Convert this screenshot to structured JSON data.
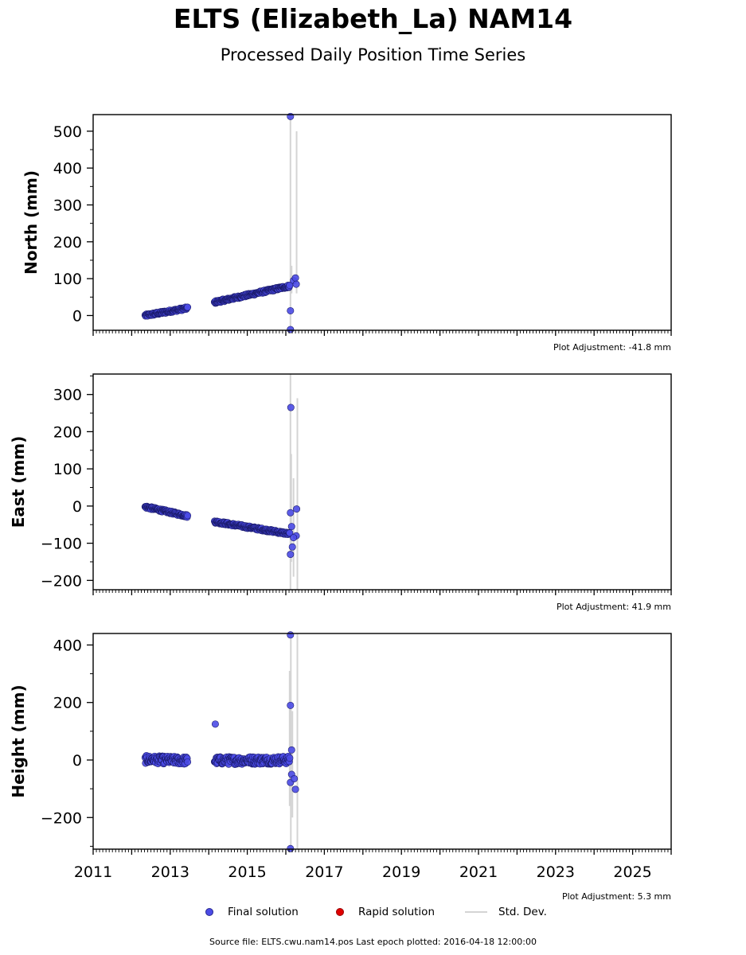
{
  "title": "ELTS (Elizabeth_La) NAM14",
  "subtitle": "Processed Daily Position Time Series",
  "colors": {
    "final": "#4b4be6",
    "rapid": "#e00000",
    "stddev": "#d4d4d4",
    "edge": "#1a1a6a"
  },
  "legend": {
    "final": "Final solution",
    "rapid": "Rapid solution",
    "stddev": "Std. Dev."
  },
  "footer": "Source file: ELTS.cwu.nam14.pos  Last epoch plotted: 2016-04-18 12:00:00",
  "chart_data": [
    {
      "type": "scatter",
      "ylabel": "North (mm)",
      "adjustment": "Plot Adjustment: -41.8 mm",
      "xlim": [
        2011,
        2026
      ],
      "ylim": [
        -40,
        545
      ],
      "yticks": [
        0,
        100,
        200,
        300,
        400,
        500
      ],
      "segments": [
        {
          "x0": 2012.35,
          "x1": 2013.45,
          "y0": 0,
          "y1": 20
        },
        {
          "x0": 2014.15,
          "x1": 2016.1,
          "y0": 36,
          "y1": 80
        }
      ],
      "extra_points": [
        {
          "x": 2016.12,
          "y": 540
        },
        {
          "x": 2016.12,
          "y": 13
        },
        {
          "x": 2016.12,
          "y": -38
        },
        {
          "x": 2016.2,
          "y": 95
        },
        {
          "x": 2016.25,
          "y": 102
        },
        {
          "x": 2016.27,
          "y": 85
        }
      ],
      "stddev_lines": [
        {
          "x": 2016.12,
          "y_lo": -40,
          "y_hi": 545
        },
        {
          "x": 2016.15,
          "y_lo": 60,
          "y_hi": 135
        },
        {
          "x": 2016.28,
          "y_lo": 60,
          "y_hi": 500
        }
      ]
    },
    {
      "type": "scatter",
      "ylabel": "East (mm)",
      "adjustment": "Plot Adjustment: 41.9 mm",
      "xlim": [
        2011,
        2026
      ],
      "ylim": [
        -225,
        355
      ],
      "yticks": [
        -200,
        -100,
        0,
        100,
        200,
        300
      ],
      "segments": [
        {
          "x0": 2012.35,
          "x1": 2013.45,
          "y0": -2,
          "y1": -27
        },
        {
          "x0": 2014.15,
          "x1": 2016.1,
          "y0": -42,
          "y1": -75
        }
      ],
      "extra_points": [
        {
          "x": 2016.13,
          "y": 265
        },
        {
          "x": 2016.12,
          "y": -18
        },
        {
          "x": 2016.12,
          "y": -130
        },
        {
          "x": 2016.17,
          "y": -110
        },
        {
          "x": 2016.15,
          "y": -55
        },
        {
          "x": 2016.28,
          "y": -8
        },
        {
          "x": 2016.27,
          "y": -80
        },
        {
          "x": 2016.2,
          "y": -85
        }
      ],
      "stddev_lines": [
        {
          "x": 2016.12,
          "y_lo": -225,
          "y_hi": 355
        },
        {
          "x": 2016.14,
          "y_lo": -150,
          "y_hi": 140
        },
        {
          "x": 2016.2,
          "y_lo": -190,
          "y_hi": 75
        },
        {
          "x": 2016.3,
          "y_lo": -225,
          "y_hi": 290
        }
      ]
    },
    {
      "type": "scatter",
      "ylabel": "Height (mm)",
      "adjustment": "Plot Adjustment: 5.3 mm",
      "xlim": [
        2011,
        2026
      ],
      "ylim": [
        -310,
        440
      ],
      "yticks": [
        -200,
        0,
        200,
        400
      ],
      "xticks": [
        2011,
        2013,
        2015,
        2017,
        2019,
        2021,
        2023,
        2025
      ],
      "segments": [
        {
          "x0": 2012.35,
          "x1": 2013.45,
          "y0": 2,
          "y1": -2
        },
        {
          "x0": 2014.15,
          "x1": 2016.1,
          "y0": -2,
          "y1": 0
        }
      ],
      "extra_points": [
        {
          "x": 2014.17,
          "y": 125
        },
        {
          "x": 2016.12,
          "y": 435
        },
        {
          "x": 2016.12,
          "y": 190
        },
        {
          "x": 2016.15,
          "y": 35
        },
        {
          "x": 2016.15,
          "y": -50
        },
        {
          "x": 2016.12,
          "y": -78
        },
        {
          "x": 2016.22,
          "y": -65
        },
        {
          "x": 2016.25,
          "y": -102
        },
        {
          "x": 2016.12,
          "y": -308
        }
      ],
      "stddev_lines": [
        {
          "x": 2016.1,
          "y_lo": -160,
          "y_hi": 310
        },
        {
          "x": 2016.13,
          "y_lo": -310,
          "y_hi": 440
        },
        {
          "x": 2016.17,
          "y_lo": -200,
          "y_hi": 170
        },
        {
          "x": 2016.3,
          "y_lo": -310,
          "y_hi": 440
        }
      ]
    }
  ]
}
